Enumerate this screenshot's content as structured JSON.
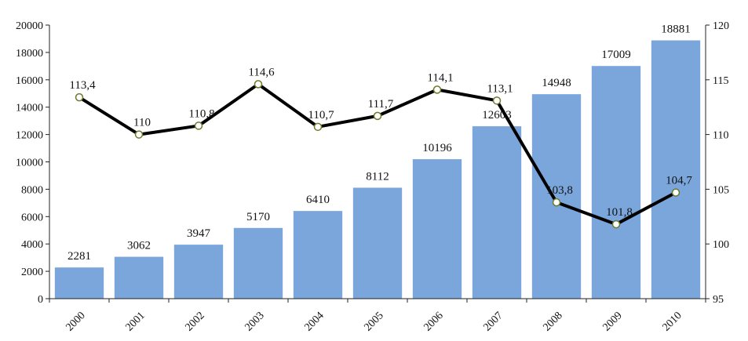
{
  "chart_data": {
    "type": "bar",
    "title": "",
    "xlabel": "",
    "ylabel": "",
    "categories": [
      "2000",
      "2001",
      "2002",
      "2003",
      "2004",
      "2005",
      "2006",
      "2007",
      "2008",
      "2009",
      "2010"
    ],
    "series": [
      {
        "type": "bar",
        "axis": "left",
        "values": [
          2281,
          3062,
          3947,
          5170,
          6410,
          8112,
          10196,
          12603,
          14948,
          17009,
          18881
        ],
        "labels": [
          "2281",
          "3062",
          "3947",
          "5170",
          "6410",
          "8112",
          "10196",
          "12603",
          "14948",
          "17009",
          "18881"
        ],
        "color": "#7aa6dc"
      },
      {
        "type": "line",
        "axis": "right",
        "values": [
          113.4,
          110,
          110.8,
          114.6,
          110.7,
          111.7,
          114.1,
          113.1,
          103.8,
          101.8,
          104.7
        ],
        "labels": [
          "113,4",
          "110",
          "110,8",
          "114,6",
          "110,7",
          "111,7",
          "114,1",
          "113,1",
          "103,8",
          "101,8",
          "104,7"
        ],
        "color": "#000000",
        "marker_fill": "#ffffff",
        "marker_stroke": "#6b7a2a"
      }
    ],
    "ylim": [
      0,
      20000
    ],
    "y_ticks": [
      "0",
      "2000",
      "4000",
      "6000",
      "8000",
      "10000",
      "12000",
      "14000",
      "16000",
      "18000",
      "20000"
    ],
    "y2lim": [
      95,
      120
    ],
    "y2_ticks": [
      "95",
      "100",
      "105",
      "110",
      "115",
      "120"
    ],
    "grid": false,
    "legend": "none"
  }
}
